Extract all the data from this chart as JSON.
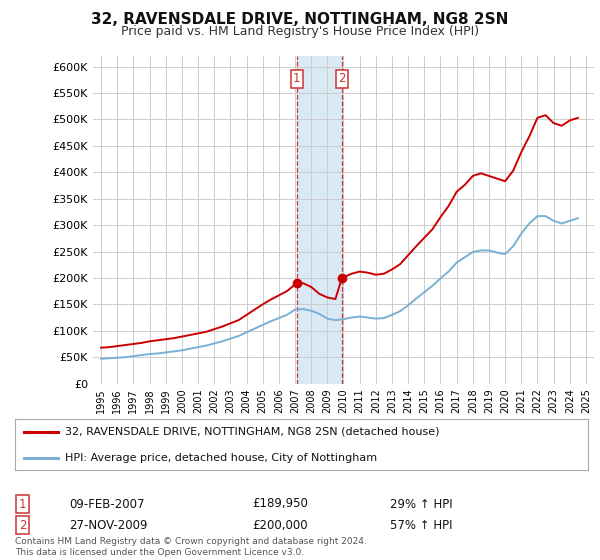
{
  "title": "32, RAVENSDALE DRIVE, NOTTINGHAM, NG8 2SN",
  "subtitle": "Price paid vs. HM Land Registry's House Price Index (HPI)",
  "background_color": "#ffffff",
  "plot_bg_color": "#ffffff",
  "grid_color": "#cccccc",
  "red_line_color": "#cc0000",
  "blue_line_color": "#7ab0d4",
  "highlight_fill": "#daeaf5",
  "marker1_x": 2007.1,
  "marker2_x": 2009.9,
  "marker1_y": 189950,
  "marker2_y": 200000,
  "ylim": [
    0,
    620000
  ],
  "xlim": [
    1994.5,
    2025.5
  ],
  "yticks": [
    0,
    50000,
    100000,
    150000,
    200000,
    250000,
    300000,
    350000,
    400000,
    450000,
    500000,
    550000,
    600000
  ],
  "ytick_labels": [
    "£0",
    "£50K",
    "£100K",
    "£150K",
    "£200K",
    "£250K",
    "£300K",
    "£350K",
    "£400K",
    "£450K",
    "£500K",
    "£550K",
    "£600K"
  ],
  "xtick_years": [
    1995,
    1996,
    1997,
    1998,
    1999,
    2000,
    2001,
    2002,
    2003,
    2004,
    2005,
    2006,
    2007,
    2008,
    2009,
    2010,
    2011,
    2012,
    2013,
    2014,
    2015,
    2016,
    2017,
    2018,
    2019,
    2020,
    2021,
    2022,
    2023,
    2024,
    2025
  ],
  "legend_label_red": "32, RAVENSDALE DRIVE, NOTTINGHAM, NG8 2SN (detached house)",
  "legend_label_blue": "HPI: Average price, detached house, City of Nottingham",
  "annotation1_label": "1",
  "annotation1_date": "09-FEB-2007",
  "annotation1_price": "£189,950",
  "annotation1_hpi": "29% ↑ HPI",
  "annotation2_label": "2",
  "annotation2_date": "27-NOV-2009",
  "annotation2_price": "£200,000",
  "annotation2_hpi": "57% ↑ HPI",
  "footer": "Contains HM Land Registry data © Crown copyright and database right 2024.\nThis data is licensed under the Open Government Licence v3.0.",
  "red_x": [
    1995.0,
    1995.5,
    1996.0,
    1996.5,
    1997.0,
    1997.5,
    1998.0,
    1998.5,
    1999.0,
    1999.5,
    2000.0,
    2000.5,
    2001.0,
    2001.5,
    2002.0,
    2002.5,
    2003.0,
    2003.5,
    2004.0,
    2004.5,
    2005.0,
    2005.5,
    2006.0,
    2006.5,
    2007.1,
    2007.5,
    2008.0,
    2008.5,
    2009.0,
    2009.5,
    2009.9,
    2010.5,
    2011.0,
    2011.5,
    2012.0,
    2012.5,
    2013.0,
    2013.5,
    2014.0,
    2014.5,
    2015.0,
    2015.5,
    2016.0,
    2016.5,
    2017.0,
    2017.5,
    2018.0,
    2018.5,
    2019.0,
    2019.5,
    2020.0,
    2020.5,
    2021.0,
    2021.5,
    2022.0,
    2022.5,
    2023.0,
    2023.5,
    2024.0,
    2024.5
  ],
  "red_y": [
    68000,
    69000,
    71000,
    73000,
    75000,
    77000,
    80000,
    82000,
    84000,
    86000,
    89000,
    92000,
    95000,
    98000,
    103000,
    108000,
    114000,
    120000,
    130000,
    140000,
    150000,
    159000,
    167000,
    175000,
    189950,
    190000,
    183000,
    170000,
    163000,
    160000,
    200000,
    208000,
    212000,
    210000,
    206000,
    208000,
    216000,
    226000,
    243000,
    260000,
    276000,
    292000,
    315000,
    336000,
    363000,
    376000,
    393000,
    398000,
    393000,
    388000,
    383000,
    403000,
    438000,
    468000,
    503000,
    508000,
    493000,
    488000,
    498000,
    503000
  ],
  "blue_x": [
    1995.0,
    1995.5,
    1996.0,
    1996.5,
    1997.0,
    1997.5,
    1998.0,
    1998.5,
    1999.0,
    1999.5,
    2000.0,
    2000.5,
    2001.0,
    2001.5,
    2002.0,
    2002.5,
    2003.0,
    2003.5,
    2004.0,
    2004.5,
    2005.0,
    2005.5,
    2006.0,
    2006.5,
    2007.0,
    2007.5,
    2008.0,
    2008.5,
    2009.0,
    2009.5,
    2010.0,
    2010.5,
    2011.0,
    2011.5,
    2012.0,
    2012.5,
    2013.0,
    2013.5,
    2014.0,
    2014.5,
    2015.0,
    2015.5,
    2016.0,
    2016.5,
    2017.0,
    2017.5,
    2018.0,
    2018.5,
    2019.0,
    2019.5,
    2020.0,
    2020.5,
    2021.0,
    2021.5,
    2022.0,
    2022.5,
    2023.0,
    2023.5,
    2024.0,
    2024.5
  ],
  "blue_y": [
    47000,
    48000,
    49000,
    50000,
    52000,
    54000,
    56000,
    57000,
    59000,
    61000,
    63000,
    66000,
    69000,
    72000,
    76000,
    80000,
    85000,
    90000,
    97000,
    104000,
    111000,
    118000,
    124000,
    130000,
    140000,
    141000,
    138000,
    132000,
    123000,
    120000,
    122000,
    125000,
    127000,
    125000,
    123000,
    124000,
    130000,
    137000,
    148000,
    161000,
    173000,
    185000,
    199000,
    212000,
    229000,
    239000,
    249000,
    252000,
    252000,
    248000,
    245000,
    260000,
    284000,
    303000,
    317000,
    317000,
    308000,
    303000,
    308000,
    313000
  ]
}
